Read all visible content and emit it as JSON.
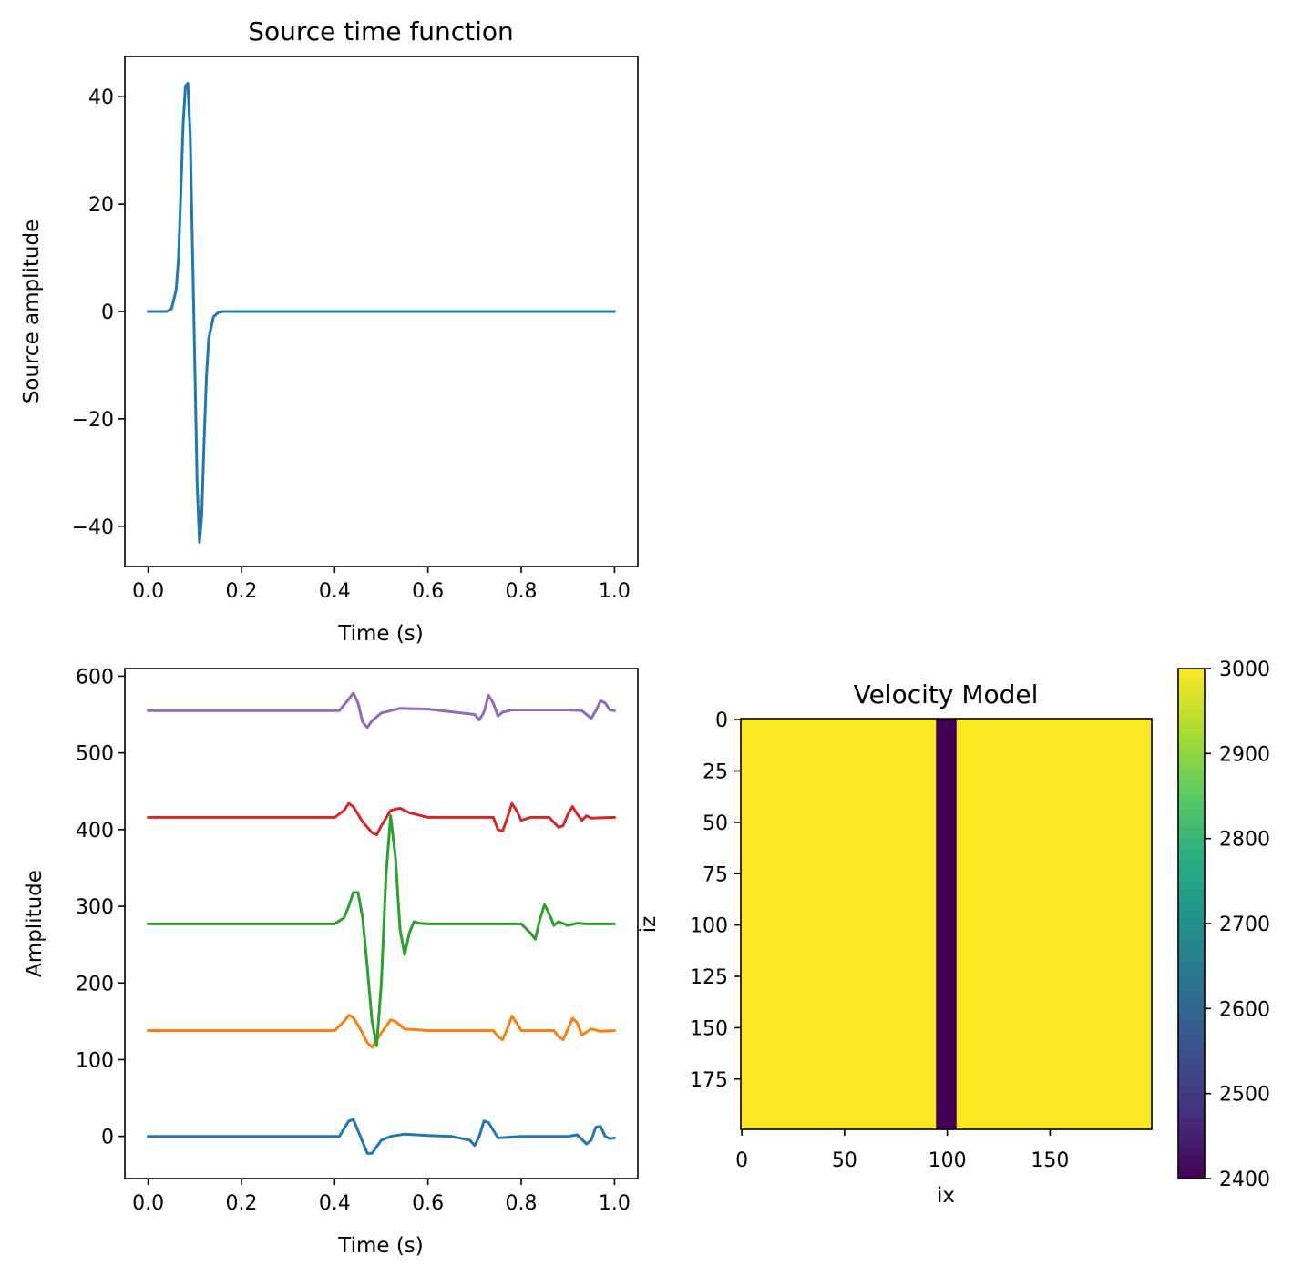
{
  "figure": {
    "background": "#ffffff"
  },
  "chart_data": [
    {
      "id": "source",
      "type": "line",
      "title": "Source time function",
      "xlabel": "Time (s)",
      "ylabel": "Source amplitude",
      "xlim": [
        -0.05,
        1.05
      ],
      "ylim": [
        -47.5,
        47.5
      ],
      "xticks": [
        0.0,
        0.2,
        0.4,
        0.6,
        0.8,
        1.0
      ],
      "xtick_labels": [
        "0.0",
        "0.2",
        "0.4",
        "0.6",
        "0.8",
        "1.0"
      ],
      "yticks": [
        -40,
        -20,
        0,
        20,
        40
      ],
      "ytick_labels": [
        "−40",
        "−20",
        "0",
        "20",
        "40"
      ],
      "grid": false,
      "series": [
        {
          "color": "#1f77b4",
          "x": [
            0.0,
            0.04,
            0.05,
            0.06,
            0.065,
            0.07,
            0.075,
            0.08,
            0.085,
            0.09,
            0.095,
            0.1,
            0.105,
            0.11,
            0.115,
            0.12,
            0.125,
            0.13,
            0.14,
            0.15,
            0.16,
            1.0
          ],
          "y": [
            0,
            0,
            0.5,
            4,
            10,
            22,
            35,
            42,
            42.5,
            33,
            12,
            -10,
            -32,
            -43,
            -38,
            -24,
            -12,
            -5,
            -1,
            -0.2,
            0,
            0
          ]
        }
      ]
    },
    {
      "id": "traces",
      "type": "line",
      "title": "",
      "xlabel": "Time (s)",
      "ylabel": "Amplitude",
      "xlim": [
        -0.05,
        1.05
      ],
      "ylim": [
        -55,
        610
      ],
      "xticks": [
        0.0,
        0.2,
        0.4,
        0.6,
        0.8,
        1.0
      ],
      "xtick_labels": [
        "0.0",
        "0.2",
        "0.4",
        "0.6",
        "0.8",
        "1.0"
      ],
      "yticks": [
        0,
        100,
        200,
        300,
        400,
        500,
        600
      ],
      "ytick_labels": [
        "0",
        "100",
        "200",
        "300",
        "400",
        "500",
        "600"
      ],
      "grid": false,
      "series": [
        {
          "color": "#1f77b4",
          "x": [
            0.0,
            0.41,
            0.43,
            0.44,
            0.455,
            0.47,
            0.48,
            0.5,
            0.52,
            0.55,
            0.6,
            0.65,
            0.69,
            0.7,
            0.71,
            0.72,
            0.73,
            0.75,
            0.8,
            0.9,
            0.92,
            0.94,
            0.95,
            0.96,
            0.97,
            0.98,
            0.99,
            1.0
          ],
          "y": [
            0,
            0,
            20,
            22,
            0,
            -22,
            -22,
            -5,
            0,
            3,
            1,
            0,
            -5,
            -12,
            0,
            20,
            18,
            -2,
            0,
            0,
            2,
            -10,
            -5,
            12,
            13,
            0,
            -3,
            -2
          ]
        },
        {
          "color": "#ff7f0e",
          "x": [
            0.0,
            0.4,
            0.42,
            0.43,
            0.44,
            0.455,
            0.47,
            0.48,
            0.5,
            0.52,
            0.53,
            0.55,
            0.6,
            0.74,
            0.75,
            0.76,
            0.77,
            0.78,
            0.79,
            0.8,
            0.82,
            0.87,
            0.88,
            0.89,
            0.9,
            0.91,
            0.92,
            0.93,
            0.95,
            0.97,
            1.0
          ],
          "y": [
            138,
            138,
            150,
            158,
            155,
            140,
            122,
            116,
            135,
            152,
            150,
            140,
            138,
            138,
            130,
            126,
            140,
            157,
            148,
            138,
            138,
            138,
            130,
            126,
            140,
            154,
            148,
            132,
            140,
            137,
            138
          ]
        },
        {
          "color": "#2ca02c",
          "x": [
            0.0,
            0.4,
            0.42,
            0.43,
            0.44,
            0.45,
            0.46,
            0.47,
            0.48,
            0.49,
            0.5,
            0.51,
            0.52,
            0.53,
            0.54,
            0.55,
            0.56,
            0.57,
            0.58,
            0.6,
            0.8,
            0.82,
            0.83,
            0.84,
            0.85,
            0.86,
            0.87,
            0.88,
            0.9,
            0.92,
            0.94,
            1.0
          ],
          "y": [
            277,
            277,
            285,
            300,
            318,
            318,
            285,
            220,
            150,
            118,
            200,
            340,
            418,
            365,
            270,
            237,
            265,
            280,
            278,
            277,
            277,
            265,
            257,
            283,
            302,
            290,
            275,
            280,
            275,
            278,
            277,
            277
          ]
        },
        {
          "color": "#d62728",
          "x": [
            0.0,
            0.4,
            0.42,
            0.43,
            0.44,
            0.46,
            0.48,
            0.49,
            0.5,
            0.52,
            0.54,
            0.56,
            0.6,
            0.74,
            0.75,
            0.76,
            0.77,
            0.78,
            0.79,
            0.8,
            0.82,
            0.86,
            0.88,
            0.89,
            0.9,
            0.91,
            0.92,
            0.93,
            0.94,
            0.95,
            1.0
          ],
          "y": [
            416,
            416,
            425,
            434,
            430,
            410,
            396,
            393,
            405,
            425,
            428,
            422,
            416,
            416,
            400,
            398,
            415,
            434,
            425,
            412,
            416,
            416,
            403,
            405,
            420,
            430,
            420,
            412,
            418,
            415,
            416
          ]
        },
        {
          "color": "#9467bd",
          "x": [
            0.0,
            0.41,
            0.43,
            0.44,
            0.45,
            0.46,
            0.47,
            0.48,
            0.5,
            0.54,
            0.6,
            0.7,
            0.71,
            0.72,
            0.73,
            0.74,
            0.75,
            0.76,
            0.78,
            0.9,
            0.93,
            0.95,
            0.96,
            0.97,
            0.98,
            0.99,
            1.0
          ],
          "y": [
            555,
            555,
            570,
            578,
            565,
            540,
            533,
            542,
            552,
            558,
            557,
            550,
            543,
            553,
            575,
            565,
            548,
            553,
            556,
            556,
            555,
            545,
            555,
            568,
            565,
            556,
            555
          ]
        }
      ]
    },
    {
      "id": "velocity",
      "type": "heatmap",
      "title": "Velocity Model",
      "xlabel": "ix",
      "ylabel": "iz",
      "nx": 200,
      "nz": 200,
      "xticks": [
        0,
        50,
        100,
        150
      ],
      "xtick_labels": [
        "0",
        "50",
        "100",
        "150"
      ],
      "yticks": [
        0,
        25,
        50,
        75,
        100,
        125,
        150,
        175
      ],
      "ytick_labels": [
        "0",
        "25",
        "50",
        "75",
        "100",
        "125",
        "150",
        "175"
      ],
      "background_value": 3000,
      "anomaly": {
        "ix_start": 95,
        "ix_end": 104,
        "value": 2400
      },
      "colormap": "viridis",
      "colorbar": {
        "min": 2400,
        "max": 3000,
        "ticks": [
          2400,
          2500,
          2600,
          2700,
          2800,
          2900,
          3000
        ],
        "tick_labels": [
          "2400",
          "2500",
          "2600",
          "2700",
          "2800",
          "2900",
          "3000"
        ]
      },
      "colors": {
        "high": "#fde725",
        "low": "#440154"
      }
    }
  ]
}
